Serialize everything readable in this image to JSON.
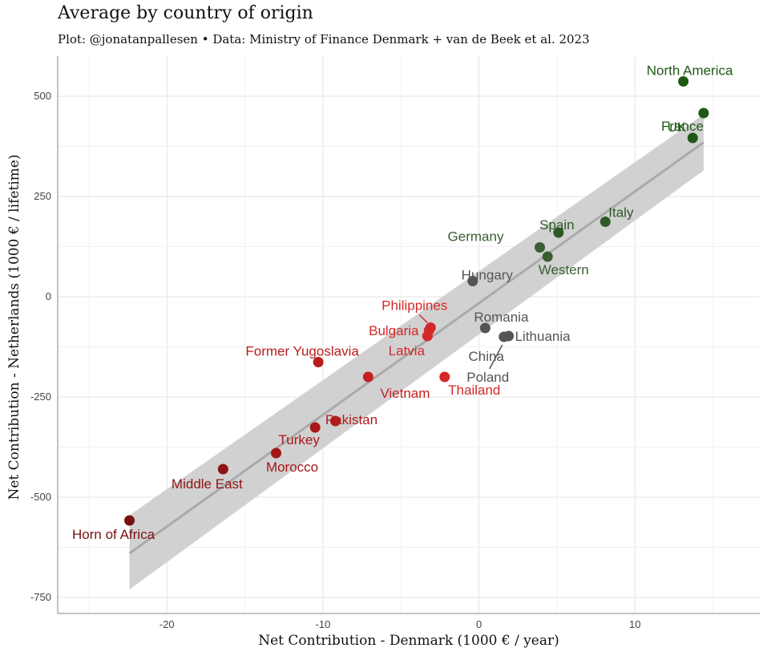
{
  "title": "Average by country of origin",
  "subtitle": "Plot: @jonatanpallesen • Data: Ministry of Finance Denmark + van de Beek et al. 2023",
  "chart_data": {
    "type": "scatter",
    "xlabel": "Net Contribution - Denmark (1000 € / year)",
    "ylabel": "Net Contribution - Netherlands (1000 € / lifetime)",
    "xlim": [
      -27,
      18
    ],
    "ylim": [
      -790,
      600
    ],
    "xticks": [
      -20,
      -10,
      0,
      10
    ],
    "yticks": [
      500,
      250,
      0,
      -250,
      -500,
      -750
    ],
    "grid": true,
    "legend": "none",
    "trend": {
      "x": [
        -22.4,
        14.4
      ],
      "y": [
        -640,
        385
      ],
      "band_low": [
        -730,
        315
      ],
      "band_high": [
        -545,
        455
      ],
      "color": "#aaaaaa"
    },
    "points": [
      {
        "label": "North America",
        "x": 13.1,
        "y": 537,
        "color": "#1e5a14"
      },
      {
        "label": "",
        "x": 14.4,
        "y": 458,
        "color": "#1e5a14"
      },
      {
        "label": "UK",
        "x": 13.7,
        "y": 396,
        "color": "#1e5a14"
      },
      {
        "label": "France",
        "x": 14.4,
        "y": 458,
        "color": "#1e5a14"
      },
      {
        "label": "Italy",
        "x": 8.1,
        "y": 187,
        "color": "#2d5a24"
      },
      {
        "label": "Spain",
        "x": 5.1,
        "y": 160,
        "color": "#2d5a24"
      },
      {
        "label": "Germany",
        "x": 3.9,
        "y": 123,
        "color": "#3a5e32"
      },
      {
        "label": "Western",
        "x": 4.4,
        "y": 100,
        "color": "#3a5e32"
      },
      {
        "label": "Hungary",
        "x": -0.4,
        "y": 39,
        "color": "#555555"
      },
      {
        "label": "Romania",
        "x": 0.4,
        "y": -78,
        "color": "#555555"
      },
      {
        "label": "Lithuania",
        "x": 1.9,
        "y": -98,
        "color": "#555555"
      },
      {
        "label": "China",
        "x": 1.6,
        "y": -100,
        "color": "#555555"
      },
      {
        "label": "Poland",
        "x": 1.6,
        "y": -100,
        "color": "#555555"
      },
      {
        "label": "Philippines",
        "x": -3.1,
        "y": -77,
        "color": "#d42828"
      },
      {
        "label": "Bulgaria",
        "x": -3.2,
        "y": -84,
        "color": "#d42828"
      },
      {
        "label": "Latvia",
        "x": -3.3,
        "y": -98,
        "color": "#d42828"
      },
      {
        "label": "Thailand",
        "x": -2.2,
        "y": -200,
        "color": "#d42828"
      },
      {
        "label": "Vietnam",
        "x": -7.1,
        "y": -200,
        "color": "#c42020"
      },
      {
        "label": "Former Yugoslavia",
        "x": -10.3,
        "y": -163,
        "color": "#b81c1c"
      },
      {
        "label": "Pakistan",
        "x": -9.2,
        "y": -310,
        "color": "#b01c1c"
      },
      {
        "label": "Turkey",
        "x": -10.5,
        "y": -326,
        "color": "#a81818"
      },
      {
        "label": "Morocco",
        "x": -13.0,
        "y": -390,
        "color": "#a21616"
      },
      {
        "label": "Middle East",
        "x": -16.4,
        "y": -430,
        "color": "#8e1414"
      },
      {
        "label": "Horn of Africa",
        "x": -22.4,
        "y": -558,
        "color": "#7a1010"
      }
    ]
  }
}
